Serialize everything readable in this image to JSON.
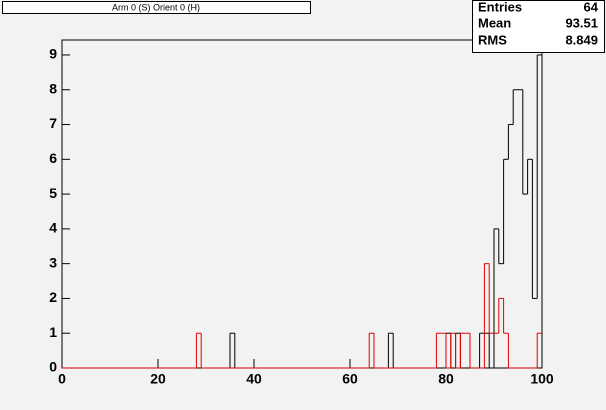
{
  "chart_data": {
    "type": "histogram",
    "title": "Arm 0 (S) Orient 0 (H)",
    "bins": [
      0,
      1,
      2,
      3,
      4,
      5,
      6,
      7,
      8,
      9,
      10,
      11,
      12,
      13,
      14,
      15,
      16,
      17,
      18,
      19,
      20,
      21,
      22,
      23,
      24,
      25,
      26,
      27,
      28,
      29,
      30,
      31,
      32,
      33,
      34,
      35,
      36,
      37,
      38,
      39,
      40,
      41,
      42,
      43,
      44,
      45,
      46,
      47,
      48,
      49,
      50,
      51,
      52,
      53,
      54,
      55,
      56,
      57,
      58,
      59,
      60,
      61,
      62,
      63,
      64,
      65,
      66,
      67,
      68,
      69,
      70,
      71,
      72,
      73,
      74,
      75,
      76,
      77,
      78,
      79,
      80,
      81,
      82,
      83,
      84,
      85,
      86,
      87,
      88,
      89,
      90,
      91,
      92,
      93,
      94,
      95,
      96,
      97,
      98,
      99,
      100
    ],
    "series": [
      {
        "color": "#000000",
        "values": [
          0,
          0,
          0,
          0,
          0,
          0,
          0,
          0,
          0,
          0,
          0,
          0,
          0,
          0,
          0,
          0,
          0,
          0,
          0,
          0,
          0,
          0,
          0,
          0,
          0,
          0,
          0,
          0,
          0,
          0,
          0,
          0,
          0,
          0,
          0,
          1,
          0,
          0,
          0,
          0,
          0,
          0,
          0,
          0,
          0,
          0,
          0,
          0,
          0,
          0,
          0,
          0,
          0,
          0,
          0,
          0,
          0,
          0,
          0,
          0,
          0,
          0,
          0,
          0,
          0,
          0,
          0,
          0,
          1,
          0,
          0,
          0,
          0,
          0,
          0,
          0,
          0,
          0,
          0,
          0,
          1,
          0,
          1,
          0,
          0,
          0,
          0,
          1,
          1,
          0,
          4,
          3,
          6,
          7,
          8,
          8,
          5,
          6,
          2,
          9
        ]
      },
      {
        "color": "#e00000",
        "values": [
          0,
          0,
          0,
          0,
          0,
          0,
          0,
          0,
          0,
          0,
          0,
          0,
          0,
          0,
          0,
          0,
          0,
          0,
          0,
          0,
          0,
          0,
          0,
          0,
          0,
          0,
          0,
          0,
          1,
          0,
          0,
          0,
          0,
          0,
          0,
          0,
          0,
          0,
          0,
          0,
          0,
          0,
          0,
          0,
          0,
          0,
          0,
          0,
          0,
          0,
          0,
          0,
          0,
          0,
          0,
          0,
          0,
          0,
          0,
          0,
          0,
          0,
          0,
          0,
          1,
          0,
          0,
          0,
          0,
          0,
          0,
          0,
          0,
          0,
          0,
          0,
          0,
          0,
          1,
          1,
          0,
          1,
          0,
          1,
          1,
          0,
          0,
          0,
          3,
          1,
          1,
          2,
          1,
          0,
          0,
          0,
          0,
          0,
          0,
          1
        ]
      }
    ],
    "xlim": [
      0,
      100
    ],
    "xticks": [
      0,
      20,
      40,
      60,
      80,
      100
    ],
    "ylim": [
      0,
      9.43
    ],
    "yticks": [
      0,
      1,
      2,
      3,
      4,
      5,
      6,
      7,
      8,
      9
    ],
    "stats": {
      "labels": [
        "Entries",
        "Mean",
        "RMS"
      ],
      "values": [
        "64",
        "93.51",
        "8.849"
      ]
    }
  }
}
